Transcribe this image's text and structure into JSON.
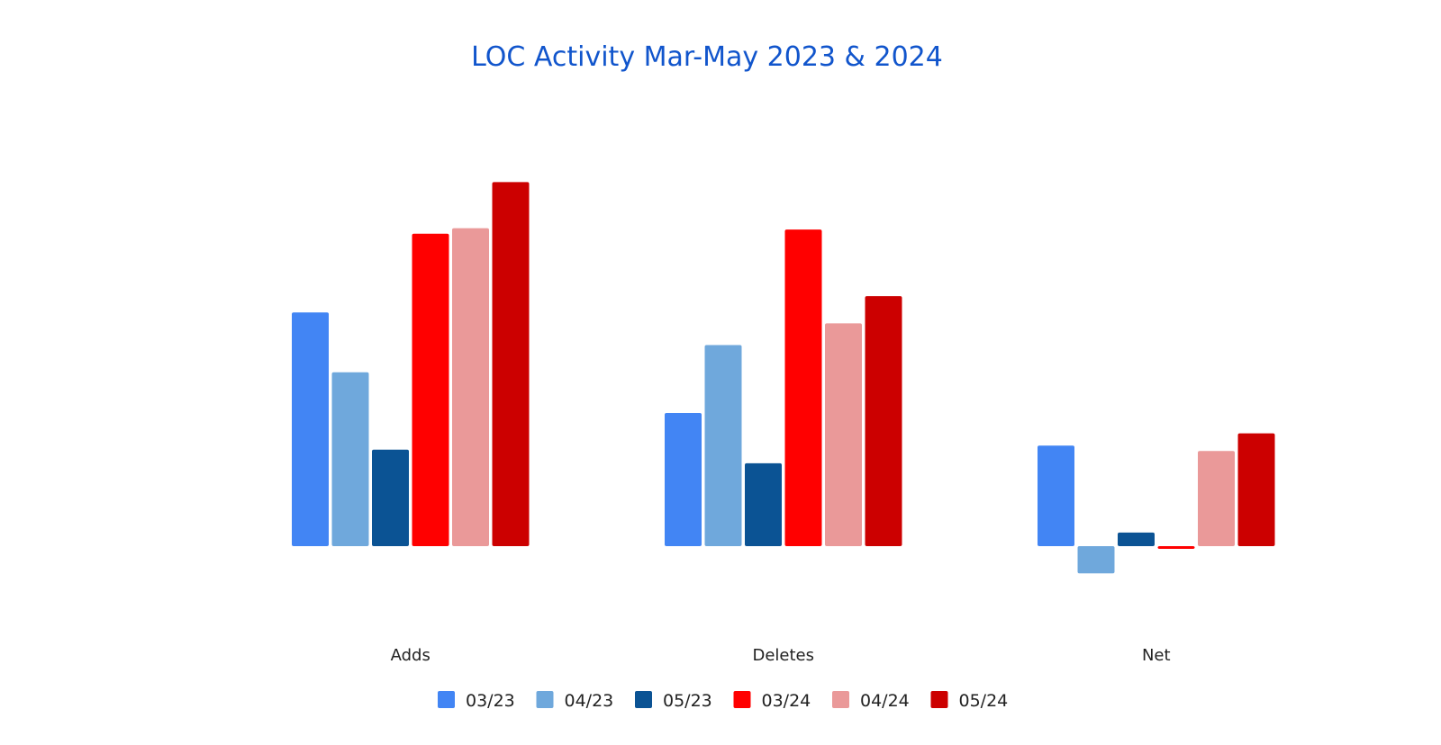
{
  "chart_data": {
    "type": "bar",
    "title": "LOC Activity Mar-May 2023 & 2024",
    "xlabel": "",
    "ylabel": "",
    "categories": [
      "Adds",
      "Deletes",
      "Net"
    ],
    "ylim": [
      -10,
      145
    ],
    "grid": false,
    "legend_position": "bottom",
    "series": [
      {
        "name": "03/23",
        "color": "#4285f4",
        "values": [
          86,
          49,
          37
        ]
      },
      {
        "name": "04/23",
        "color": "#6fa8dc",
        "values": [
          64,
          74,
          -10
        ]
      },
      {
        "name": "05/23",
        "color": "#0b5394",
        "values": [
          35.5,
          30.5,
          5
        ]
      },
      {
        "name": "03/24",
        "color": "#ff0000",
        "values": [
          115,
          116.5,
          -1
        ]
      },
      {
        "name": "04/24",
        "color": "#ea9999",
        "values": [
          117,
          82,
          35
        ]
      },
      {
        "name": "05/24",
        "color": "#cc0000",
        "values": [
          134,
          92,
          41.5
        ]
      }
    ]
  }
}
